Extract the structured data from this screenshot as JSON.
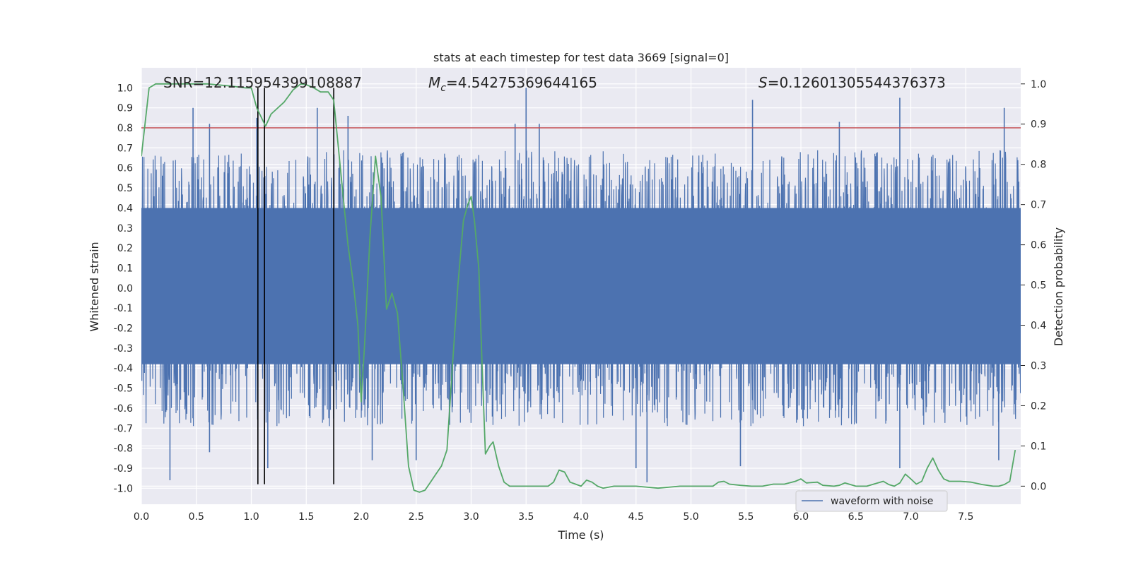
{
  "chart_data": {
    "type": "line",
    "title": "stats at each timestep for test data 3669 [signal=0]",
    "xlabel": "Time (s)",
    "ylabel": "Whitened strain",
    "y2label": "Detection probability",
    "xlim": [
      0.0,
      8.0
    ],
    "ylim": [
      -1.08,
      1.1
    ],
    "y2lim": [
      -0.045,
      1.04
    ],
    "xticks": [
      "0.0",
      "0.5",
      "1.0",
      "1.5",
      "2.0",
      "2.5",
      "3.0",
      "3.5",
      "4.0",
      "4.5",
      "5.0",
      "5.5",
      "6.0",
      "6.5",
      "7.0",
      "7.5"
    ],
    "yticks": [
      "1.0",
      "0.9",
      "0.8",
      "0.7",
      "0.6",
      "0.5",
      "0.4",
      "0.3",
      "0.2",
      "0.1",
      "0.0",
      "-0.1",
      "-0.2",
      "-0.3",
      "-0.4",
      "-0.5",
      "-0.6",
      "-0.7",
      "-0.8",
      "-0.9",
      "-1.0"
    ],
    "y2ticks": [
      "1.0",
      "0.9",
      "0.8",
      "0.7",
      "0.6",
      "0.5",
      "0.4",
      "0.3",
      "0.2",
      "0.1",
      "0.0"
    ],
    "grid": true,
    "legend": {
      "position": "lower-right",
      "entries": [
        "waveform with noise"
      ]
    },
    "annotations": {
      "snr": "SNR=12.115954399108887",
      "mc_symbol": "M",
      "mc_sub": "c",
      "mc_value": "=4.54275369644165",
      "s_symbol": "S",
      "s_value": "=0.12601305544376373"
    },
    "series": [
      {
        "name": "waveform with noise",
        "axis": "left",
        "color": "#4c72b0",
        "style": "dense-noise",
        "band_lower": -0.38,
        "band_upper": 0.4,
        "spike_peaks": [
          {
            "x": 0.47,
            "y": 0.9
          },
          {
            "x": 0.62,
            "y": 0.82
          },
          {
            "x": 1.05,
            "y": 0.85
          },
          {
            "x": 1.6,
            "y": 0.9
          },
          {
            "x": 1.88,
            "y": 0.86
          },
          {
            "x": 3.5,
            "y": 1.0
          },
          {
            "x": 3.4,
            "y": 0.82
          },
          {
            "x": 3.62,
            "y": 0.82
          },
          {
            "x": 5.56,
            "y": 0.94
          },
          {
            "x": 6.35,
            "y": 0.83
          },
          {
            "x": 6.9,
            "y": 0.95
          },
          {
            "x": 7.85,
            "y": 0.9
          },
          {
            "x": 0.26,
            "y": -0.96
          },
          {
            "x": 0.62,
            "y": -0.82
          },
          {
            "x": 1.15,
            "y": -0.9
          },
          {
            "x": 2.1,
            "y": -0.86
          },
          {
            "x": 2.5,
            "y": -0.86
          },
          {
            "x": 4.6,
            "y": -0.97
          },
          {
            "x": 4.5,
            "y": -0.9
          },
          {
            "x": 5.45,
            "y": -0.89
          },
          {
            "x": 6.9,
            "y": -0.9
          },
          {
            "x": 7.8,
            "y": -0.86
          }
        ]
      },
      {
        "name": "",
        "axis": "right",
        "color": "#55a868",
        "x": [
          0.0,
          0.07,
          0.13,
          0.2,
          0.4,
          0.6,
          0.8,
          0.95,
          1.0,
          1.05,
          1.13,
          1.18,
          1.3,
          1.38,
          1.45,
          1.5,
          1.57,
          1.63,
          1.7,
          1.75,
          1.8,
          1.85,
          1.88,
          1.93,
          1.97,
          2.0,
          2.03,
          2.08,
          2.13,
          2.18,
          2.23,
          2.28,
          2.33,
          2.38,
          2.43,
          2.48,
          2.53,
          2.58,
          2.63,
          2.68,
          2.73,
          2.78,
          2.83,
          2.88,
          2.93,
          2.97,
          3.0,
          3.03,
          3.07,
          3.1,
          3.13,
          3.17,
          3.2,
          3.25,
          3.3,
          3.35,
          3.4,
          3.5,
          3.6,
          3.7,
          3.75,
          3.8,
          3.85,
          3.9,
          3.95,
          4.0,
          4.05,
          4.1,
          4.15,
          4.2,
          4.3,
          4.5,
          4.7,
          4.9,
          5.1,
          5.15,
          5.2,
          5.25,
          5.3,
          5.35,
          5.45,
          5.55,
          5.65,
          5.75,
          5.85,
          5.95,
          6.0,
          6.05,
          6.15,
          6.2,
          6.3,
          6.35,
          6.4,
          6.5,
          6.6,
          6.7,
          6.75,
          6.8,
          6.85,
          6.9,
          6.95,
          7.0,
          7.05,
          7.1,
          7.15,
          7.2,
          7.25,
          7.3,
          7.35,
          7.45,
          7.55,
          7.65,
          7.75,
          7.8,
          7.85,
          7.9,
          7.95
        ],
        "y": [
          0.82,
          0.99,
          1.0,
          1.0,
          1.0,
          1.0,
          0.995,
          0.99,
          0.99,
          0.94,
          0.895,
          0.925,
          0.955,
          0.985,
          1.0,
          0.998,
          0.99,
          0.98,
          0.98,
          0.96,
          0.82,
          0.68,
          0.6,
          0.5,
          0.4,
          0.21,
          0.35,
          0.62,
          0.82,
          0.72,
          0.44,
          0.48,
          0.43,
          0.25,
          0.05,
          -0.01,
          -0.015,
          -0.01,
          0.01,
          0.03,
          0.05,
          0.09,
          0.3,
          0.5,
          0.66,
          0.7,
          0.72,
          0.66,
          0.54,
          0.3,
          0.08,
          0.1,
          0.11,
          0.05,
          0.01,
          0.0,
          0.0,
          0.0,
          0.0,
          0.0,
          0.01,
          0.04,
          0.035,
          0.01,
          0.005,
          0.0,
          0.015,
          0.01,
          0.0,
          -0.005,
          0.0,
          0.0,
          -0.005,
          0.0,
          0.0,
          0.0,
          0.0,
          0.01,
          0.012,
          0.005,
          0.002,
          0.0,
          0.0,
          0.005,
          0.005,
          0.012,
          0.018,
          0.008,
          0.01,
          0.002,
          0.0,
          0.002,
          0.008,
          0.0,
          0.0,
          0.008,
          0.012,
          0.004,
          0.0,
          0.008,
          0.03,
          0.018,
          0.005,
          0.012,
          0.045,
          0.07,
          0.04,
          0.018,
          0.012,
          0.012,
          0.01,
          0.004,
          0.0,
          0.0,
          0.004,
          0.012,
          0.09
        ]
      }
    ],
    "threshold_line": {
      "axis": "left",
      "y": 0.8,
      "color": "#c44e52"
    },
    "vertical_lines": {
      "x": [
        1.06,
        1.12,
        1.75
      ],
      "y_range": [
        -0.98,
        1.0
      ],
      "color": "#000000"
    },
    "colors": {
      "plot_background": "#eaeaf2",
      "grid": "#ffffff"
    }
  }
}
